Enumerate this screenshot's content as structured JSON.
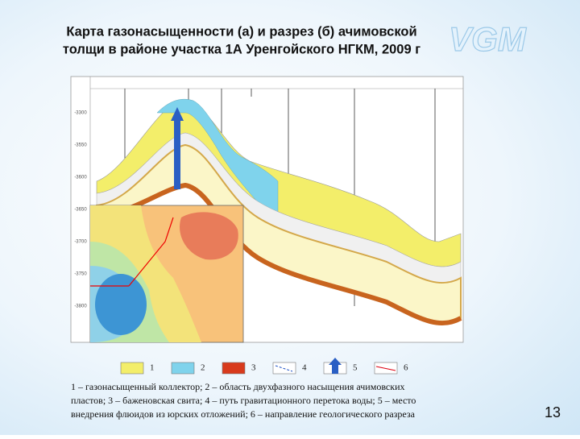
{
  "header": {
    "title_lines": [
      "Карта газонасыщенности (а) и разрез (б) ачимовской",
      "толщи в районе участка 1А Уренгойского НГКМ, 2009 г"
    ],
    "logo": "VGM"
  },
  "figure": {
    "depth_labels": [
      "-3300",
      "-3550",
      "-3600",
      "-3650",
      "-3700",
      "-3750",
      "-3800"
    ]
  },
  "legend": {
    "items": [
      "1",
      "2",
      "3",
      "4",
      "5",
      "6"
    ]
  },
  "caption": {
    "lines": [
      "1 – газонасыщенный коллектор;  2 – область двухфазного насыщения ачимовских",
      "пластов; 3 – баженовская свита; 4 – путь гравитационного перетока воды; 5 – место",
      "внедрения флюидов из юрских отложений; 6 – направление геологического разреза"
    ]
  },
  "page_number": "13"
}
